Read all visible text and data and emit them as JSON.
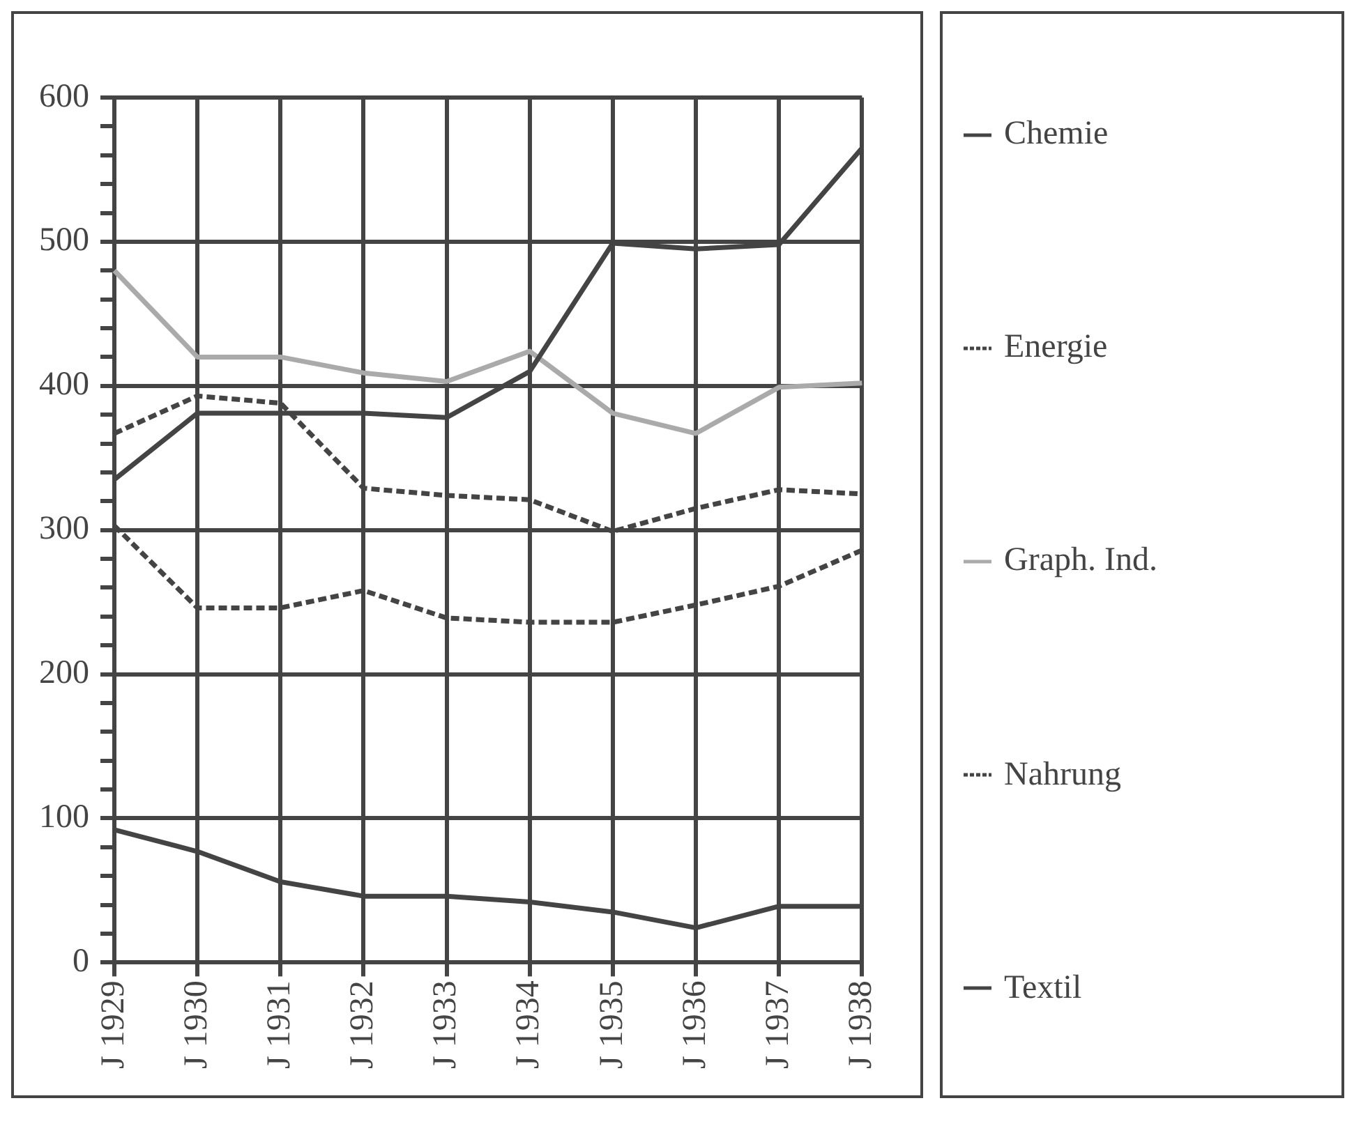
{
  "chart_data": {
    "type": "line",
    "categories": [
      "J 1929",
      "J 1930",
      "J 1931",
      "J 1932",
      "J 1933",
      "J 1934",
      "J 1935",
      "J 1936",
      "J 1937",
      "J 1938"
    ],
    "series": [
      {
        "name": "Chemie",
        "color": "#444444",
        "line_style": "solid",
        "values": [
          335,
          381,
          381,
          381,
          378,
          410,
          499,
          495,
          498,
          565
        ]
      },
      {
        "name": "Energie",
        "color": "#444444",
        "line_style": "dashed",
        "values": [
          303,
          246,
          246,
          258,
          239,
          236,
          236,
          248,
          261,
          286
        ]
      },
      {
        "name": "Graph. Ind.",
        "color": "#aaaaaa",
        "line_style": "solid",
        "values": [
          480,
          420,
          420,
          409,
          403,
          424,
          381,
          367,
          399,
          402
        ]
      },
      {
        "name": "Nahrung",
        "color": "#444444",
        "line_style": "dashed",
        "values": [
          367,
          393,
          388,
          329,
          324,
          321,
          299,
          315,
          328,
          325
        ]
      },
      {
        "name": "Textil",
        "color": "#444444",
        "line_style": "solid",
        "values": [
          92,
          77,
          56,
          46,
          46,
          42,
          35,
          24,
          39,
          39
        ]
      }
    ],
    "ylim": [
      0,
      600
    ],
    "yticks": [
      0,
      {
        "value": 20,
        "label": null
      },
      {
        "value": 40,
        "label": null
      },
      {
        "value": 60,
        "label": null
      },
      {
        "value": 80,
        "label": null
      },
      100,
      {
        "value": 120,
        "label": null
      },
      {
        "value": 140,
        "label": null
      },
      {
        "value": 160,
        "label": null
      },
      {
        "value": 180,
        "label": null
      },
      200,
      {
        "value": 220,
        "label": null
      },
      {
        "value": 240,
        "label": null
      },
      {
        "value": 260,
        "label": null
      },
      {
        "value": 280,
        "label": null
      },
      300,
      {
        "value": 320,
        "label": null
      },
      {
        "value": 340,
        "label": null
      },
      {
        "value": 360,
        "label": null
      },
      {
        "value": 380,
        "label": null
      },
      400,
      {
        "value": 420,
        "label": null
      },
      {
        "value": 440,
        "label": null
      },
      {
        "value": 460,
        "label": null
      },
      {
        "value": 480,
        "label": null
      },
      500,
      {
        "value": 520,
        "label": null
      },
      {
        "value": 540,
        "label": null
      },
      {
        "value": 560,
        "label": null
      },
      {
        "value": 580,
        "label": null
      },
      600
    ],
    "grid": true,
    "legend": "right"
  }
}
